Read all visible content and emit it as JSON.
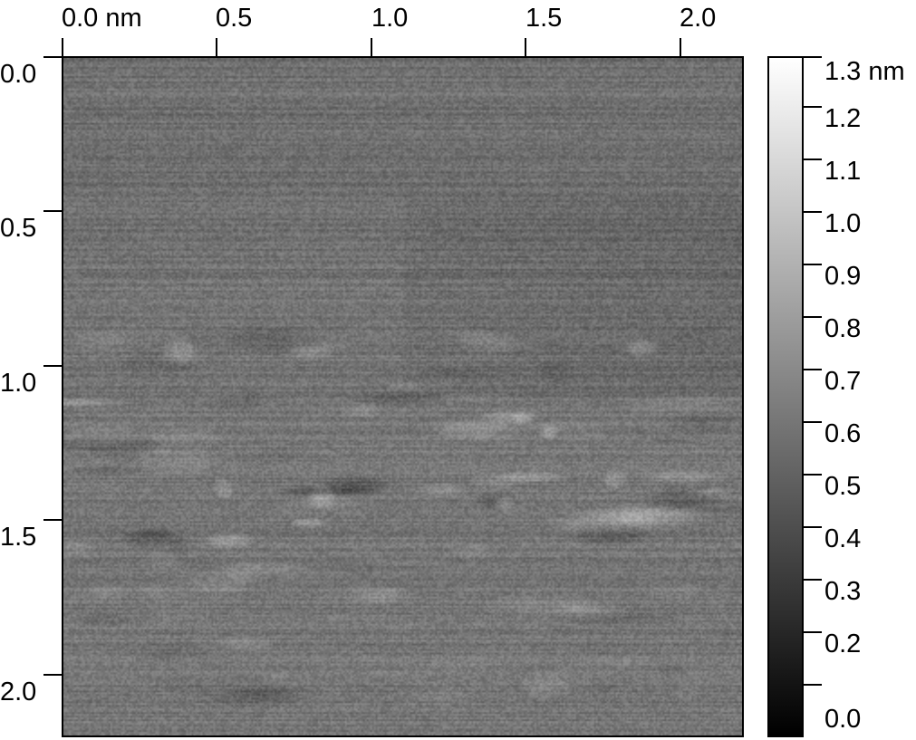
{
  "image": {
    "type": "afm-height-map",
    "colormap": "grayscale",
    "x_axis": {
      "unit": "nm",
      "tick_labels": [
        "0.0 nm",
        "0.5",
        "1.0",
        "1.5",
        "2.0"
      ]
    },
    "y_axis": {
      "tick_labels": [
        "0.0",
        "0.5",
        "1.0",
        "1.5",
        "2.0"
      ]
    },
    "colorbar": {
      "unit": "nm",
      "min_color": "#000000",
      "max_color": "#ffffff",
      "tick_labels": [
        "1.3 nm",
        "1.2",
        "1.1",
        "1.0",
        "0.9",
        "0.8",
        "0.7",
        "0.6",
        "0.5",
        "0.4",
        "0.3",
        "0.2",
        "0.0"
      ]
    }
  }
}
